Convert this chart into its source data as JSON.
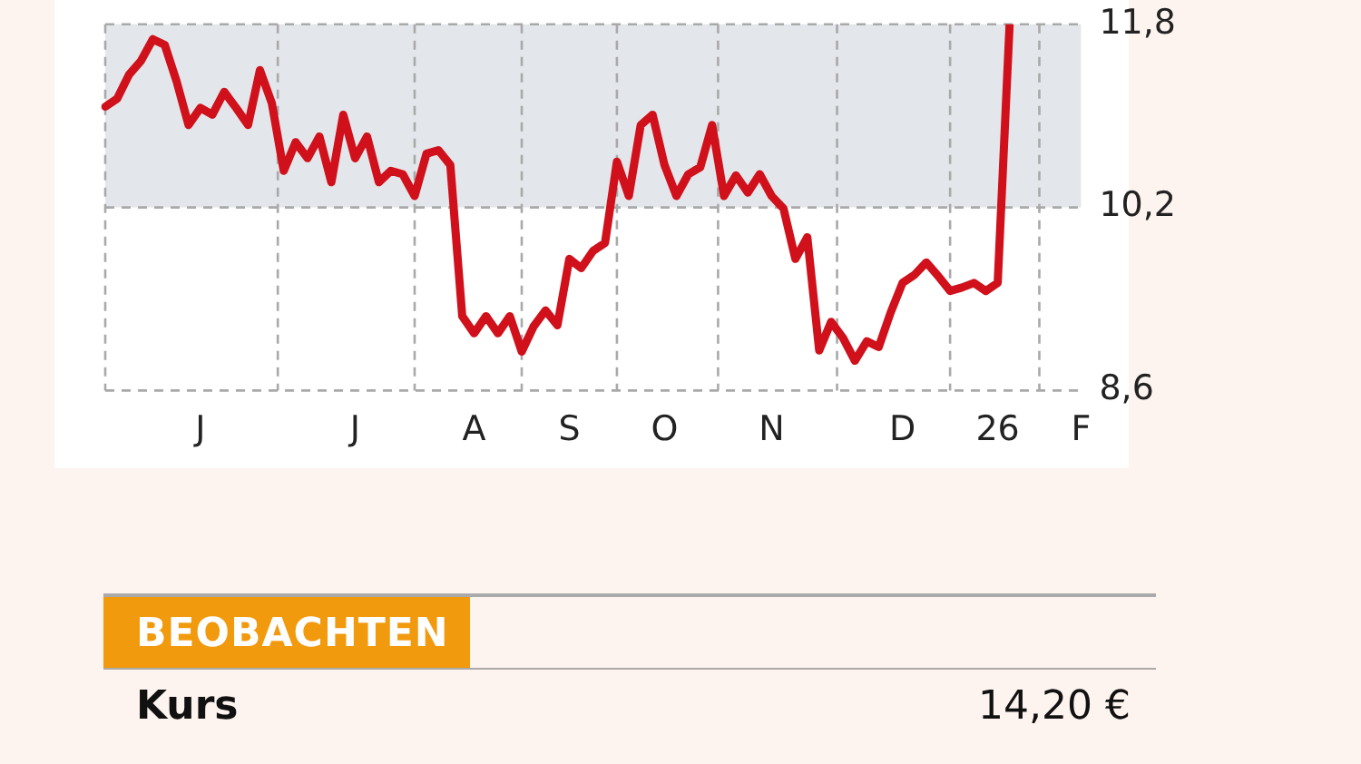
{
  "chart_data": {
    "type": "line",
    "categories": [
      null,
      null,
      null,
      null,
      null,
      null,
      null,
      null,
      "J",
      null,
      null,
      null,
      null,
      null,
      null,
      null,
      null,
      null,
      null,
      null,
      null,
      "J",
      null,
      null,
      null,
      null,
      null,
      null,
      null,
      null,
      null,
      "A",
      null,
      null,
      null,
      null,
      null,
      null,
      null,
      "S",
      null,
      null,
      null,
      null,
      null,
      null,
      null,
      "O",
      null,
      null,
      null,
      null,
      null,
      null,
      null,
      null,
      "N",
      null,
      null,
      null,
      null,
      null,
      null,
      null,
      null,
      null,
      null,
      "D",
      null,
      null,
      null,
      null,
      null,
      null,
      null,
      "26",
      null,
      null,
      null,
      null,
      null,
      null,
      "F"
    ],
    "series": [
      {
        "color": "#d0101a",
        "values": [
          11.08,
          11.15,
          11.36,
          11.48,
          11.67,
          11.62,
          11.3,
          10.92,
          11.07,
          11.01,
          11.21,
          11.07,
          10.92,
          11.4,
          11.11,
          10.52,
          10.77,
          10.63,
          10.82,
          10.42,
          11.01,
          10.63,
          10.82,
          10.42,
          10.52,
          10.49,
          10.3,
          10.67,
          10.7,
          10.57,
          9.25,
          9.1,
          9.25,
          9.1,
          9.25,
          8.94,
          9.16,
          9.3,
          9.17,
          9.75,
          9.67,
          9.82,
          9.89,
          10.6,
          10.3,
          10.92,
          11.01,
          10.57,
          10.3,
          10.49,
          10.55,
          10.92,
          10.3,
          10.48,
          10.33,
          10.49,
          10.3,
          10.19,
          9.75,
          9.94,
          8.95,
          9.2,
          9.06,
          8.86,
          9.03,
          8.98,
          9.28,
          9.54,
          9.61,
          9.72,
          9.6,
          9.47,
          9.5,
          9.54,
          9.47,
          9.54,
          11.8,
          null,
          null,
          null,
          null,
          null,
          null
        ]
      }
    ],
    "ylim": [
      8.6,
      11.8
    ],
    "yticks": [
      {
        "value": 8.6,
        "label": "8,6"
      },
      {
        "value": 10.2,
        "label": "10,2"
      },
      {
        "value": 11.8,
        "label": "11,8"
      }
    ],
    "bands": [
      {
        "axis": "y",
        "from": 10.2,
        "to": 11.8,
        "color": "#e3e6ea"
      }
    ],
    "grid": true,
    "legend": false,
    "marker": "none",
    "line_style": "solid",
    "annotations": [
      "BEOBACHTEN",
      "Kurs",
      "14,20 €"
    ]
  }
}
